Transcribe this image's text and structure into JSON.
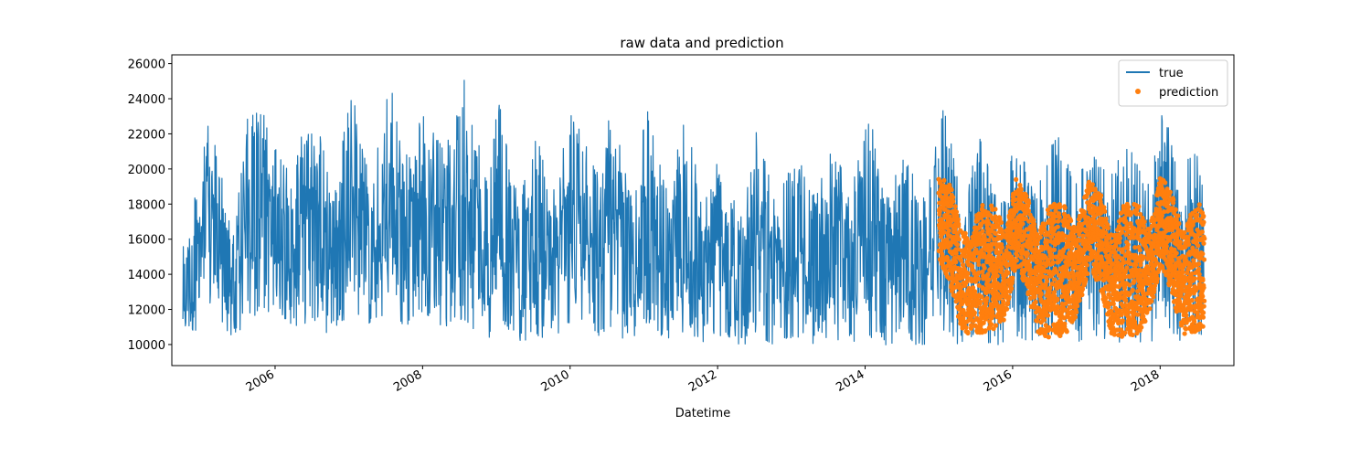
{
  "chart_data": {
    "type": "line",
    "title": "raw data and prediction",
    "xlabel": "Datetime",
    "ylabel": "",
    "xlim": [
      2004.6,
      2019.0
    ],
    "ylim": [
      8800,
      26500
    ],
    "x_ticks": [
      2006,
      2008,
      2010,
      2012,
      2014,
      2016,
      2018
    ],
    "x_tick_labels": [
      "2006",
      "2008",
      "2010",
      "2012",
      "2014",
      "2016",
      "2018"
    ],
    "y_ticks": [
      10000,
      12000,
      14000,
      16000,
      18000,
      20000,
      22000,
      24000,
      26000
    ],
    "y_tick_labels": [
      "10000",
      "12000",
      "14000",
      "16000",
      "18000",
      "20000",
      "22000",
      "24000",
      "26000"
    ],
    "grid": false,
    "legend_position": "top-right",
    "series": [
      {
        "name": "true",
        "kind": "line",
        "color": "#1f77b4",
        "x_start": 2004.75,
        "x_end": 2018.6,
        "upper_envelope": [
          [
            2004.75,
            16100
          ],
          [
            2004.9,
            18000
          ],
          [
            2005.05,
            22900
          ],
          [
            2005.25,
            20600
          ],
          [
            2005.45,
            16200
          ],
          [
            2005.6,
            22700
          ],
          [
            2005.8,
            23800
          ],
          [
            2006.05,
            20600
          ],
          [
            2006.25,
            20500
          ],
          [
            2006.5,
            24800
          ],
          [
            2006.75,
            18900
          ],
          [
            2007.05,
            24400
          ],
          [
            2007.3,
            19000
          ],
          [
            2007.55,
            25100
          ],
          [
            2007.75,
            21000
          ],
          [
            2008.0,
            23200
          ],
          [
            2008.3,
            21000
          ],
          [
            2008.6,
            25600
          ],
          [
            2008.85,
            19500
          ],
          [
            2009.05,
            24100
          ],
          [
            2009.3,
            18000
          ],
          [
            2009.55,
            22000
          ],
          [
            2009.75,
            18500
          ],
          [
            2010.05,
            24300
          ],
          [
            2010.35,
            20000
          ],
          [
            2010.55,
            23600
          ],
          [
            2010.8,
            19000
          ],
          [
            2011.05,
            23300
          ],
          [
            2011.35,
            18500
          ],
          [
            2011.55,
            24300
          ],
          [
            2011.8,
            18000
          ],
          [
            2012.05,
            21700
          ],
          [
            2012.35,
            18000
          ],
          [
            2012.5,
            23000
          ],
          [
            2012.8,
            18000
          ],
          [
            2013.05,
            21600
          ],
          [
            2013.3,
            18500
          ],
          [
            2013.55,
            21800
          ],
          [
            2013.8,
            18500
          ],
          [
            2014.05,
            23400
          ],
          [
            2014.3,
            18500
          ],
          [
            2014.55,
            21000
          ],
          [
            2014.75,
            18500
          ],
          [
            2015.1,
            24300
          ],
          [
            2015.3,
            18500
          ],
          [
            2015.55,
            21800
          ],
          [
            2015.8,
            18500
          ],
          [
            2016.05,
            21600
          ],
          [
            2016.3,
            19000
          ],
          [
            2016.6,
            22200
          ],
          [
            2016.85,
            19000
          ],
          [
            2017.05,
            21600
          ],
          [
            2017.3,
            19500
          ],
          [
            2017.55,
            21800
          ],
          [
            2017.8,
            19000
          ],
          [
            2018.05,
            23600
          ],
          [
            2018.3,
            18500
          ],
          [
            2018.45,
            22500
          ],
          [
            2018.6,
            18300
          ]
        ],
        "lower_envelope": [
          [
            2004.75,
            10500
          ],
          [
            2004.9,
            10600
          ],
          [
            2005.05,
            12000
          ],
          [
            2005.25,
            11500
          ],
          [
            2005.45,
            10000
          ],
          [
            2005.6,
            10900
          ],
          [
            2005.8,
            11800
          ],
          [
            2006.05,
            11800
          ],
          [
            2006.25,
            11000
          ],
          [
            2006.5,
            11300
          ],
          [
            2006.75,
            10500
          ],
          [
            2007.05,
            12000
          ],
          [
            2007.3,
            11000
          ],
          [
            2007.55,
            11800
          ],
          [
            2007.75,
            10800
          ],
          [
            2008.0,
            11900
          ],
          [
            2008.3,
            10900
          ],
          [
            2008.6,
            11300
          ],
          [
            2008.85,
            10000
          ],
          [
            2009.05,
            11500
          ],
          [
            2009.3,
            10100
          ],
          [
            2009.55,
            10500
          ],
          [
            2009.75,
            10100
          ],
          [
            2010.05,
            11500
          ],
          [
            2010.35,
            10300
          ],
          [
            2010.55,
            11000
          ],
          [
            2010.8,
            10000
          ],
          [
            2011.05,
            11200
          ],
          [
            2011.35,
            10100
          ],
          [
            2011.55,
            10800
          ],
          [
            2011.8,
            9900
          ],
          [
            2012.05,
            10500
          ],
          [
            2012.35,
            9900
          ],
          [
            2012.5,
            10600
          ],
          [
            2012.8,
            9900
          ],
          [
            2013.05,
            10500
          ],
          [
            2013.3,
            9900
          ],
          [
            2013.55,
            10500
          ],
          [
            2013.8,
            9800
          ],
          [
            2014.05,
            10400
          ],
          [
            2014.3,
            9800
          ],
          [
            2014.55,
            10300
          ],
          [
            2014.75,
            9800
          ],
          [
            2015.1,
            10800
          ],
          [
            2015.3,
            9800
          ],
          [
            2015.55,
            10300
          ],
          [
            2015.8,
            9800
          ],
          [
            2016.05,
            10500
          ],
          [
            2016.3,
            9800
          ],
          [
            2016.6,
            10500
          ],
          [
            2016.85,
            9900
          ],
          [
            2017.05,
            10700
          ],
          [
            2017.3,
            9900
          ],
          [
            2017.55,
            10300
          ],
          [
            2017.8,
            9900
          ],
          [
            2018.05,
            10600
          ],
          [
            2018.3,
            10000
          ],
          [
            2018.45,
            10500
          ],
          [
            2018.6,
            10600
          ]
        ]
      },
      {
        "name": "prediction",
        "kind": "scatter",
        "color": "#ff7f0e",
        "x_start": 2015.0,
        "x_end": 2018.6,
        "upper_envelope": [
          [
            2015.0,
            19500
          ],
          [
            2015.15,
            19300
          ],
          [
            2015.3,
            16500
          ],
          [
            2015.45,
            16200
          ],
          [
            2015.55,
            18000
          ],
          [
            2015.75,
            18000
          ],
          [
            2015.9,
            16500
          ],
          [
            2016.05,
            19500
          ],
          [
            2016.2,
            18500
          ],
          [
            2016.35,
            16200
          ],
          [
            2016.5,
            18000
          ],
          [
            2016.7,
            18000
          ],
          [
            2016.85,
            16500
          ],
          [
            2017.05,
            19500
          ],
          [
            2017.2,
            18500
          ],
          [
            2017.35,
            16000
          ],
          [
            2017.5,
            18000
          ],
          [
            2017.7,
            18000
          ],
          [
            2017.85,
            16500
          ],
          [
            2018.0,
            19500
          ],
          [
            2018.15,
            19000
          ],
          [
            2018.3,
            16200
          ],
          [
            2018.45,
            18000
          ],
          [
            2018.6,
            18000
          ]
        ],
        "lower_envelope": [
          [
            2015.0,
            14800
          ],
          [
            2015.15,
            13500
          ],
          [
            2015.3,
            11000
          ],
          [
            2015.45,
            10400
          ],
          [
            2015.55,
            10600
          ],
          [
            2015.75,
            10800
          ],
          [
            2015.9,
            11500
          ],
          [
            2016.05,
            14500
          ],
          [
            2016.2,
            13000
          ],
          [
            2016.35,
            10600
          ],
          [
            2016.5,
            10400
          ],
          [
            2016.7,
            10500
          ],
          [
            2016.85,
            11500
          ],
          [
            2017.05,
            14500
          ],
          [
            2017.2,
            13000
          ],
          [
            2017.35,
            10500
          ],
          [
            2017.5,
            10400
          ],
          [
            2017.7,
            10600
          ],
          [
            2017.85,
            11500
          ],
          [
            2018.0,
            14500
          ],
          [
            2018.15,
            13000
          ],
          [
            2018.3,
            10600
          ],
          [
            2018.45,
            10600
          ],
          [
            2018.6,
            11000
          ]
        ]
      }
    ]
  }
}
